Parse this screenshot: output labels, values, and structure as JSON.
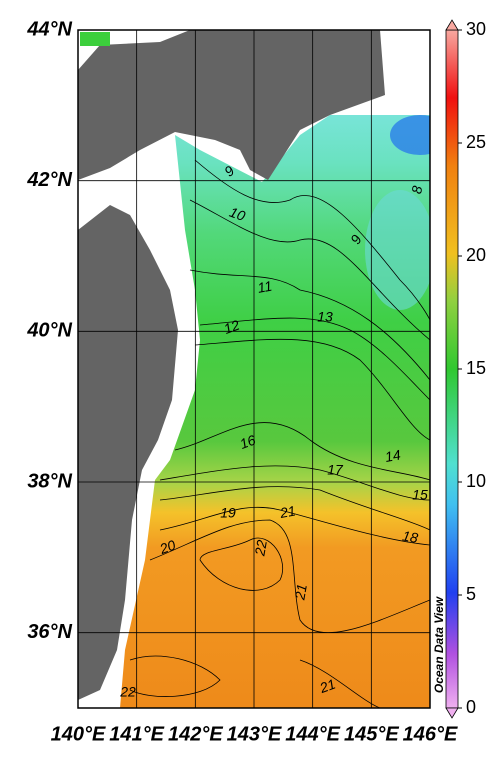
{
  "map": {
    "xlim": [
      140,
      146
    ],
    "ylim": [
      35,
      44
    ],
    "xticks": [
      {
        "value": 140,
        "label": "140°E"
      },
      {
        "value": 141,
        "label": "141°E"
      },
      {
        "value": 142,
        "label": "142°E"
      },
      {
        "value": 143,
        "label": "143°E"
      },
      {
        "value": 144,
        "label": "144°E"
      },
      {
        "value": 145,
        "label": "145°E"
      },
      {
        "value": 146,
        "label": "146°E"
      }
    ],
    "yticks": [
      {
        "value": 36,
        "label": "36°N"
      },
      {
        "value": 38,
        "label": "38°N"
      },
      {
        "value": 40,
        "label": "40°N"
      },
      {
        "value": 42,
        "label": "42°N"
      },
      {
        "value": 44,
        "label": "44°N"
      }
    ],
    "colorbar": {
      "lim": [
        0,
        30
      ],
      "ticks": [
        0,
        5,
        10,
        15,
        20,
        25,
        30
      ]
    },
    "watermark": "Ocean Data View",
    "contour_labels": [
      9,
      10,
      9,
      8,
      11,
      12,
      13,
      16,
      14,
      17,
      15,
      19,
      21,
      18,
      20,
      22,
      21,
      22,
      21
    ]
  }
}
